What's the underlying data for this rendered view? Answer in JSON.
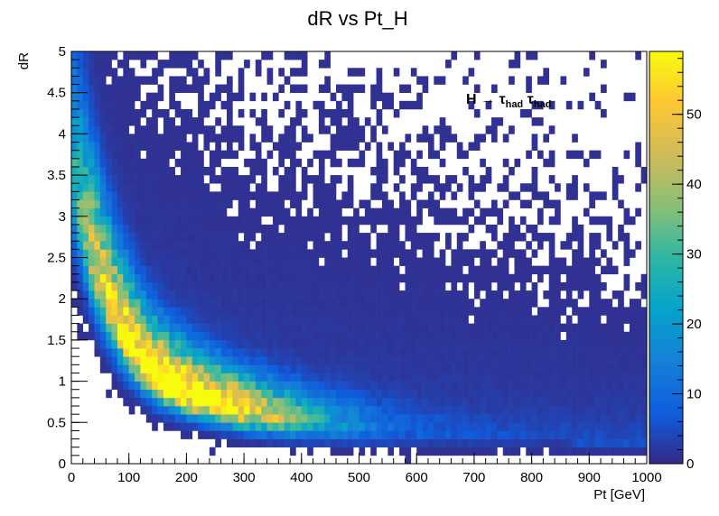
{
  "chart_data": {
    "type": "heatmap",
    "title": "dR vs Pt_H",
    "xlabel": "Pt [GeV]",
    "ylabel": "dR",
    "xlim": [
      0,
      1000
    ],
    "ylim": [
      0,
      5
    ],
    "x_ticks": [
      "0",
      "100",
      "200",
      "300",
      "400",
      "500",
      "600",
      "700",
      "800",
      "900",
      "1000"
    ],
    "y_ticks": [
      "0",
      "0.5",
      "1",
      "1.5",
      "2",
      "2.5",
      "3",
      "3.5",
      "4",
      "4.5",
      "5"
    ],
    "colorbar": {
      "range": [
        0,
        59
      ],
      "ticks": [
        "0",
        "10",
        "20",
        "30",
        "40",
        "50"
      ]
    },
    "annotation": {
      "main": "H → τ",
      "sub1": "had",
      "mid": " τ",
      "sub2": "had"
    },
    "bins": {
      "nx": 100,
      "ny": 50,
      "ridge_points": [
        [
          5,
          3.3
        ],
        [
          20,
          2.9
        ],
        [
          40,
          2.4
        ],
        [
          60,
          2.0
        ],
        [
          80,
          1.7
        ],
        [
          100,
          1.45
        ],
        [
          120,
          1.25
        ],
        [
          140,
          1.1
        ],
        [
          160,
          1.0
        ],
        [
          180,
          0.92
        ],
        [
          200,
          0.85
        ],
        [
          250,
          0.72
        ],
        [
          300,
          0.62
        ],
        [
          350,
          0.55
        ],
        [
          400,
          0.5
        ],
        [
          500,
          0.42
        ],
        [
          600,
          0.35
        ],
        [
          700,
          0.3
        ],
        [
          800,
          0.27
        ],
        [
          900,
          0.24
        ],
        [
          1000,
          0.22
        ]
      ],
      "peak_count": 59
    },
    "grid": false,
    "legend": "none"
  }
}
